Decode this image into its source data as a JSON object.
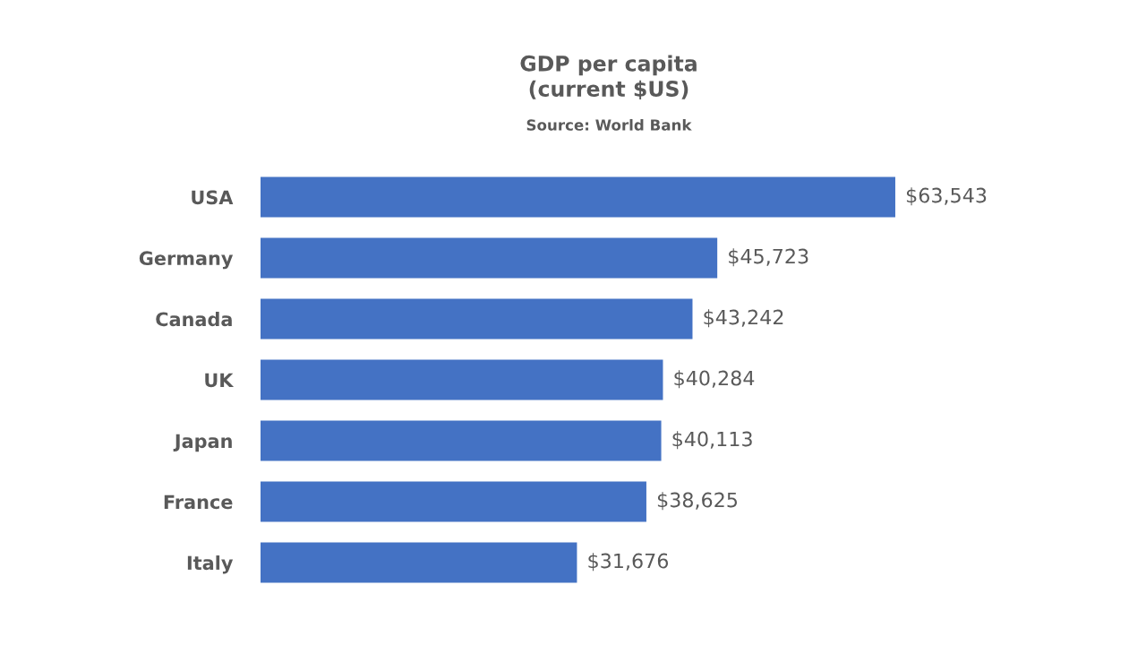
{
  "chart_data": {
    "type": "bar",
    "orientation": "horizontal",
    "title": "GDP per capita\n(current $US)",
    "annotations": [
      "Source: World Bank"
    ],
    "categories": [
      "USA",
      "Germany",
      "Canada",
      "UK",
      "Japan",
      "France",
      "Italy"
    ],
    "values": [
      63543,
      45723,
      43242,
      40284,
      40113,
      38625,
      31676
    ],
    "value_labels": [
      "$63,543",
      "$45,723",
      "$43,242",
      "$40,284",
      "$40,113",
      "$38,625",
      "$31,676"
    ],
    "color": "#4472c4",
    "grid": false,
    "legend": false
  }
}
